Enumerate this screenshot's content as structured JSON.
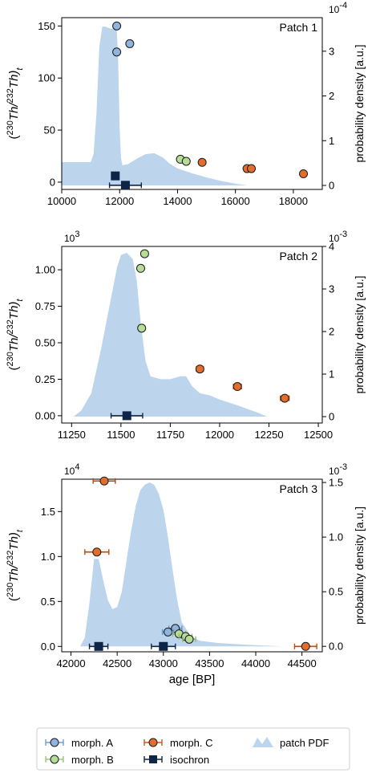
{
  "chart_data": [
    {
      "type": "scatter",
      "title": "Patch 1",
      "ylabel": "(230Th/232Th)t",
      "y2label": "probability density [a.u.]",
      "xlim": [
        10000,
        19000
      ],
      "ylim": [
        -7,
        158
      ],
      "y2lim": [
        -0.09,
        3.75
      ],
      "y2_multiplier": "10^-4",
      "x_ticks": [
        10000,
        12000,
        14000,
        16000,
        18000
      ],
      "y_ticks": [
        {
          "value": 0,
          "label": "0"
        },
        {
          "value": 50,
          "label": "50"
        },
        {
          "value": 100,
          "label": "100"
        },
        {
          "value": 150,
          "label": "150"
        }
      ],
      "y2_ticks": [
        {
          "value": 0,
          "label": "0"
        },
        {
          "value": 1,
          "label": "1"
        },
        {
          "value": 2,
          "label": "2"
        },
        {
          "value": 3,
          "label": "3"
        }
      ],
      "pdf": {
        "x": [
          10000,
          11000,
          11100,
          11200,
          11300,
          11400,
          11500,
          11700,
          11900,
          11950,
          12000,
          12050,
          12100,
          12300,
          12600,
          12900,
          13200,
          13500,
          13700,
          14000,
          14500,
          15000,
          15500,
          16000,
          16400
        ],
        "y": [
          0.52,
          0.52,
          0.7,
          1.6,
          3.1,
          3.55,
          3.55,
          3.5,
          3.52,
          2.8,
          1.3,
          0.6,
          0.45,
          0.48,
          0.6,
          0.7,
          0.72,
          0.62,
          0.5,
          0.38,
          0.27,
          0.18,
          0.1,
          0.04,
          0.0
        ]
      },
      "series": [
        {
          "name": "morph. A",
          "type": "morph",
          "color": "#8fb4df",
          "points": [
            {
              "x": 11900,
              "y": 150,
              "xerr": 40
            },
            {
              "x": 12350,
              "y": 133,
              "xerr": 40
            },
            {
              "x": 11900,
              "y": 125,
              "xerr": 40
            }
          ]
        },
        {
          "name": "morph. B",
          "type": "morph",
          "color": "#b7dc97",
          "points": [
            {
              "x": 14100,
              "y": 22,
              "xerr": 40
            },
            {
              "x": 14300,
              "y": 20,
              "xerr": 40
            }
          ]
        },
        {
          "name": "morph. C",
          "type": "morph",
          "color": "#e26d2c",
          "points": [
            {
              "x": 14850,
              "y": 19,
              "xerr": 40
            },
            {
              "x": 16400,
              "y": 13,
              "xerr": 40
            },
            {
              "x": 16550,
              "y": 13,
              "xerr": 40
            },
            {
              "x": 18350,
              "y": 8,
              "xerr": 40
            }
          ]
        },
        {
          "name": "isochron",
          "type": "isochron",
          "color": "#0f2547",
          "points": [
            {
              "x": 11850,
              "y": 6,
              "xerr": 100
            },
            {
              "x": 12200,
              "y": -3,
              "xerr": 550
            }
          ]
        }
      ]
    },
    {
      "type": "scatter",
      "title": "Patch 2",
      "ylabel": "(230Th/232Th)t",
      "y2label": "probability density [a.u.]",
      "xlim": [
        11200,
        12520
      ],
      "ylim": [
        -0.05,
        1.16
      ],
      "y2lim": [
        -0.15,
        4.0
      ],
      "x_multiplier": "10^3",
      "y2_multiplier": "10^-3",
      "x_ticks": [
        11250,
        11500,
        11750,
        12000,
        12250,
        12500
      ],
      "y_ticks": [
        {
          "value": 0,
          "label": "0.00"
        },
        {
          "value": 0.25,
          "label": "0.25"
        },
        {
          "value": 0.5,
          "label": "0.50"
        },
        {
          "value": 0.75,
          "label": "0.75"
        },
        {
          "value": 1.0,
          "label": "1.00"
        }
      ],
      "y2_ticks": [
        {
          "value": 0,
          "label": "0"
        },
        {
          "value": 1,
          "label": "1"
        },
        {
          "value": 2,
          "label": "2"
        },
        {
          "value": 3,
          "label": "3"
        },
        {
          "value": 4,
          "label": "4"
        }
      ],
      "pdf": {
        "x": [
          11260,
          11300,
          11350,
          11400,
          11450,
          11480,
          11500,
          11530,
          11560,
          11580,
          11600,
          11625,
          11650,
          11700,
          11750,
          11800,
          11830,
          11860,
          11900,
          11950,
          12000,
          12100,
          12200,
          12240
        ],
        "y": [
          0.0,
          0.15,
          0.55,
          1.6,
          2.8,
          3.5,
          3.8,
          3.85,
          3.7,
          3.2,
          2.2,
          1.3,
          0.95,
          0.88,
          0.88,
          0.95,
          0.95,
          0.72,
          0.55,
          0.5,
          0.4,
          0.25,
          0.08,
          0.0
        ]
      },
      "series": [
        {
          "name": "morph. A",
          "type": "morph",
          "color": "#8fb4df",
          "points": []
        },
        {
          "name": "morph. B",
          "type": "morph",
          "color": "#b7dc97",
          "points": [
            {
              "x": 11620,
              "y": 1.11,
              "xerr": 18
            },
            {
              "x": 11600,
              "y": 1.01,
              "xerr": 8
            },
            {
              "x": 11605,
              "y": 0.6,
              "xerr": 8
            }
          ]
        },
        {
          "name": "morph. C",
          "type": "morph",
          "color": "#e26d2c",
          "points": [
            {
              "x": 11900,
              "y": 0.32,
              "xerr": 18
            },
            {
              "x": 12090,
              "y": 0.2,
              "xerr": 20
            },
            {
              "x": 12330,
              "y": 0.12,
              "xerr": 22
            }
          ]
        },
        {
          "name": "isochron",
          "type": "isochron",
          "color": "#0f2547",
          "points": [
            {
              "x": 11530,
              "y": 0.0,
              "xerr": 80
            }
          ]
        }
      ]
    },
    {
      "type": "scatter",
      "title": "Patch 3",
      "ylabel": "(230Th/232Th)t",
      "y2label": "probability density [a.u.]",
      "xlim": [
        41900,
        44720
      ],
      "ylim": [
        -0.06,
        1.86
      ],
      "y2lim": [
        -0.05,
        1.53
      ],
      "x_multiplier": "10^4",
      "y2_multiplier": "10^-3",
      "xlabel": "age [BP]",
      "x_ticks": [
        42000,
        42500,
        43000,
        43500,
        44000,
        44500
      ],
      "y_ticks": [
        {
          "value": 0,
          "label": "0.0"
        },
        {
          "value": 0.5,
          "label": "0.5"
        },
        {
          "value": 1.0,
          "label": "1.0"
        },
        {
          "value": 1.5,
          "label": "1.5"
        }
      ],
      "y2_ticks": [
        {
          "value": 0,
          "label": "0.0"
        },
        {
          "value": 0.5,
          "label": "0.5"
        },
        {
          "value": 1.0,
          "label": "1.0"
        },
        {
          "value": 1.5,
          "label": "1.5"
        }
      ],
      "pdf": {
        "x": [
          42100,
          42150,
          42200,
          42250,
          42300,
          42350,
          42400,
          42450,
          42500,
          42550,
          42600,
          42650,
          42700,
          42750,
          42800,
          42850,
          42900,
          42950,
          43000,
          43050,
          43100,
          43150,
          43200,
          43300,
          43400,
          43600,
          43800,
          44000,
          44300
        ],
        "y": [
          0.0,
          0.08,
          0.4,
          0.8,
          0.8,
          0.6,
          0.42,
          0.34,
          0.36,
          0.5,
          0.78,
          1.05,
          1.28,
          1.43,
          1.48,
          1.5,
          1.48,
          1.4,
          1.25,
          1.0,
          0.7,
          0.42,
          0.22,
          0.09,
          0.05,
          0.03,
          0.02,
          0.01,
          0.0
        ]
      },
      "series": [
        {
          "name": "morph. A",
          "type": "morph",
          "color": "#8fb4df",
          "points": [
            {
              "x": 43130,
              "y": 0.2,
              "xerr": 70
            },
            {
              "x": 43050,
              "y": 0.16,
              "xerr": 60
            }
          ]
        },
        {
          "name": "morph. B",
          "type": "morph",
          "color": "#b7dc97",
          "points": [
            {
              "x": 43170,
              "y": 0.14,
              "xerr": 70
            },
            {
              "x": 43240,
              "y": 0.11,
              "xerr": 70
            },
            {
              "x": 43280,
              "y": 0.08,
              "xerr": 70
            }
          ]
        },
        {
          "name": "morph. C",
          "type": "morph",
          "color": "#e26d2c",
          "points": [
            {
              "x": 42360,
              "y": 1.84,
              "xerr": 120
            },
            {
              "x": 42280,
              "y": 1.05,
              "xerr": 130
            },
            {
              "x": 44540,
              "y": 0.0,
              "xerr": 120
            }
          ]
        },
        {
          "name": "isochron",
          "type": "isochron",
          "color": "#0f2547",
          "points": [
            {
              "x": 42300,
              "y": 0.0,
              "xerr": 100
            },
            {
              "x": 43000,
              "y": 0.0,
              "xerr": 130
            }
          ]
        }
      ]
    }
  ],
  "legend": {
    "items": [
      {
        "label": "morph. A",
        "kind": "morph",
        "color": "#8fb4df",
        "err_color": "#6a9fd6"
      },
      {
        "label": "morph. C",
        "kind": "morph",
        "color": "#e26d2c",
        "err_color": "#c65a21"
      },
      {
        "label": "patch PDF",
        "kind": "pdf",
        "color": "#bcd5ec"
      },
      {
        "label": "morph. B",
        "kind": "morph",
        "color": "#b7dc97",
        "err_color": "#9ccb78"
      },
      {
        "label": "isochron",
        "kind": "isochron",
        "color": "#0f2547",
        "err_color": "#0f2547"
      }
    ]
  },
  "colors": {
    "pdf_fill": "#bcd5ec",
    "marker_edge": "#1a1a1a",
    "axis": "#000000"
  }
}
